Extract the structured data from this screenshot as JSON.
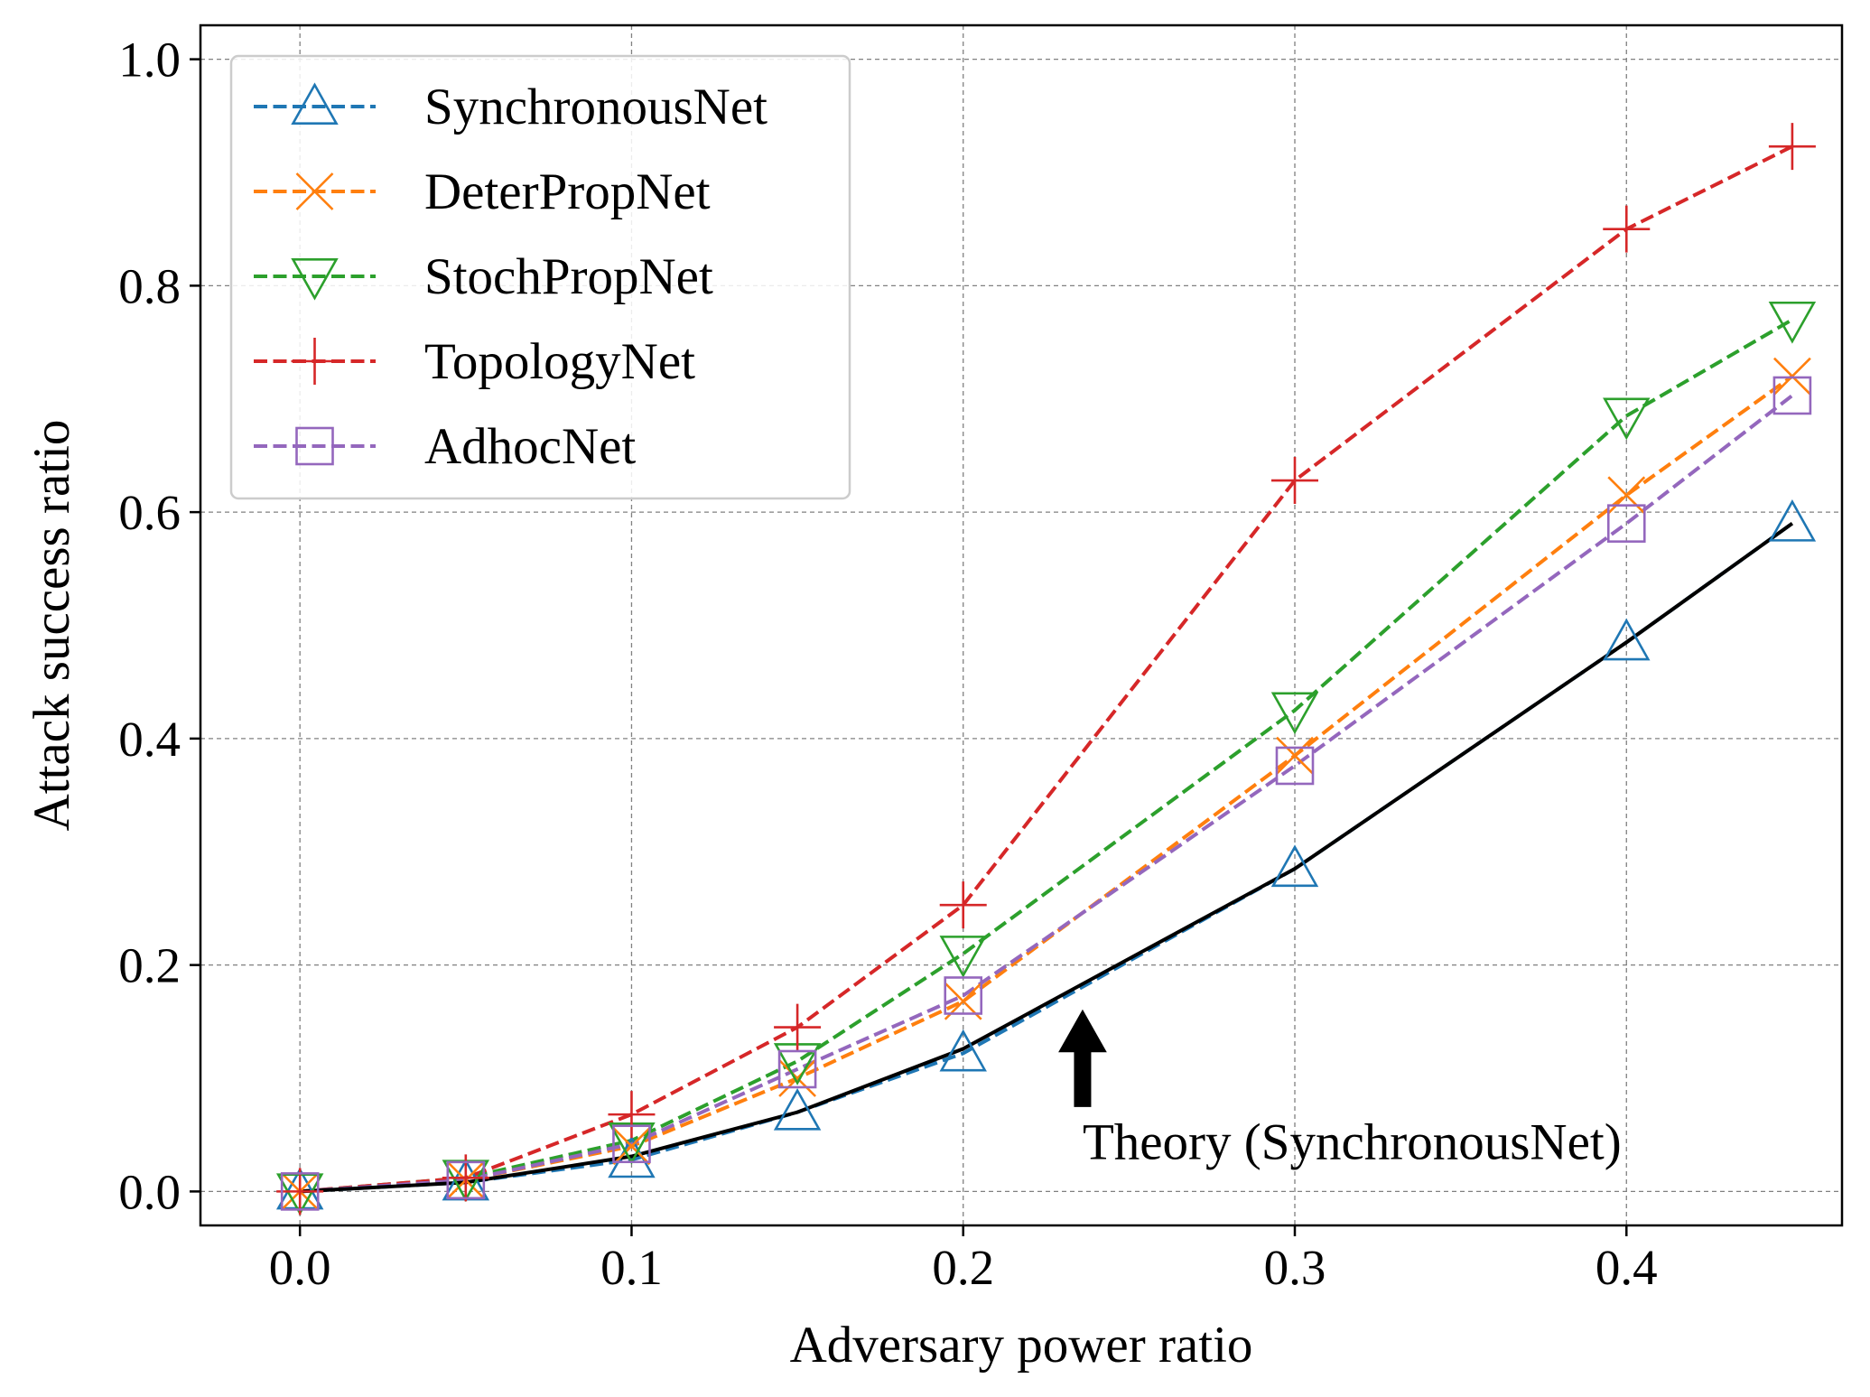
{
  "chart_data": {
    "type": "line",
    "title": "",
    "xlabel": "Adversary power ratio",
    "ylabel": "Attack success ratio",
    "xlim": [
      -0.03,
      0.465
    ],
    "ylim": [
      -0.03,
      1.03
    ],
    "xticks": [
      0.0,
      0.1,
      0.2,
      0.3,
      0.4
    ],
    "xtick_labels": [
      "0.0",
      "0.1",
      "0.2",
      "0.3",
      "0.4"
    ],
    "yticks": [
      0.0,
      0.2,
      0.4,
      0.6,
      0.8,
      1.0
    ],
    "ytick_labels": [
      "0.0",
      "0.2",
      "0.4",
      "0.6",
      "0.8",
      "1.0"
    ],
    "grid": true,
    "legend_position": "top-left",
    "x": [
      0.0,
      0.05,
      0.1,
      0.15,
      0.2,
      0.3,
      0.4,
      0.45
    ],
    "series": [
      {
        "name": "SynchronousNet",
        "color": "#1f77b4",
        "marker": "triangle-up",
        "line_style": "dashed",
        "values": [
          0.0,
          0.008,
          0.028,
          0.07,
          0.122,
          0.285,
          0.485,
          0.59
        ]
      },
      {
        "name": "DeterPropNet",
        "color": "#ff7f0e",
        "marker": "x",
        "line_style": "dashed",
        "values": [
          0.0,
          0.01,
          0.04,
          0.1,
          0.168,
          0.385,
          0.615,
          0.72
        ]
      },
      {
        "name": "StochPropNet",
        "color": "#2ca02c",
        "marker": "triangle-down",
        "line_style": "dashed",
        "values": [
          0.0,
          0.012,
          0.045,
          0.115,
          0.21,
          0.425,
          0.685,
          0.77
        ]
      },
      {
        "name": "TopologyNet",
        "color": "#d62728",
        "marker": "plus",
        "line_style": "dashed",
        "values": [
          0.0,
          0.012,
          0.068,
          0.145,
          0.253,
          0.628,
          0.85,
          0.923
        ]
      },
      {
        "name": "AdhocNet",
        "color": "#9467bd",
        "marker": "square",
        "line_style": "dashed",
        "values": [
          0.0,
          0.01,
          0.042,
          0.108,
          0.173,
          0.376,
          0.59,
          0.703
        ]
      }
    ],
    "theory": {
      "color": "#000000",
      "line_style": "solid",
      "values": [
        0.0,
        0.008,
        0.031,
        0.07,
        0.126,
        0.285,
        0.485,
        0.59
      ]
    },
    "annotation": {
      "text": "Theory (SynchronousNet)",
      "arrow_tip": [
        0.236,
        0.16
      ],
      "arrow_tail": [
        0.236,
        0.075
      ]
    }
  }
}
